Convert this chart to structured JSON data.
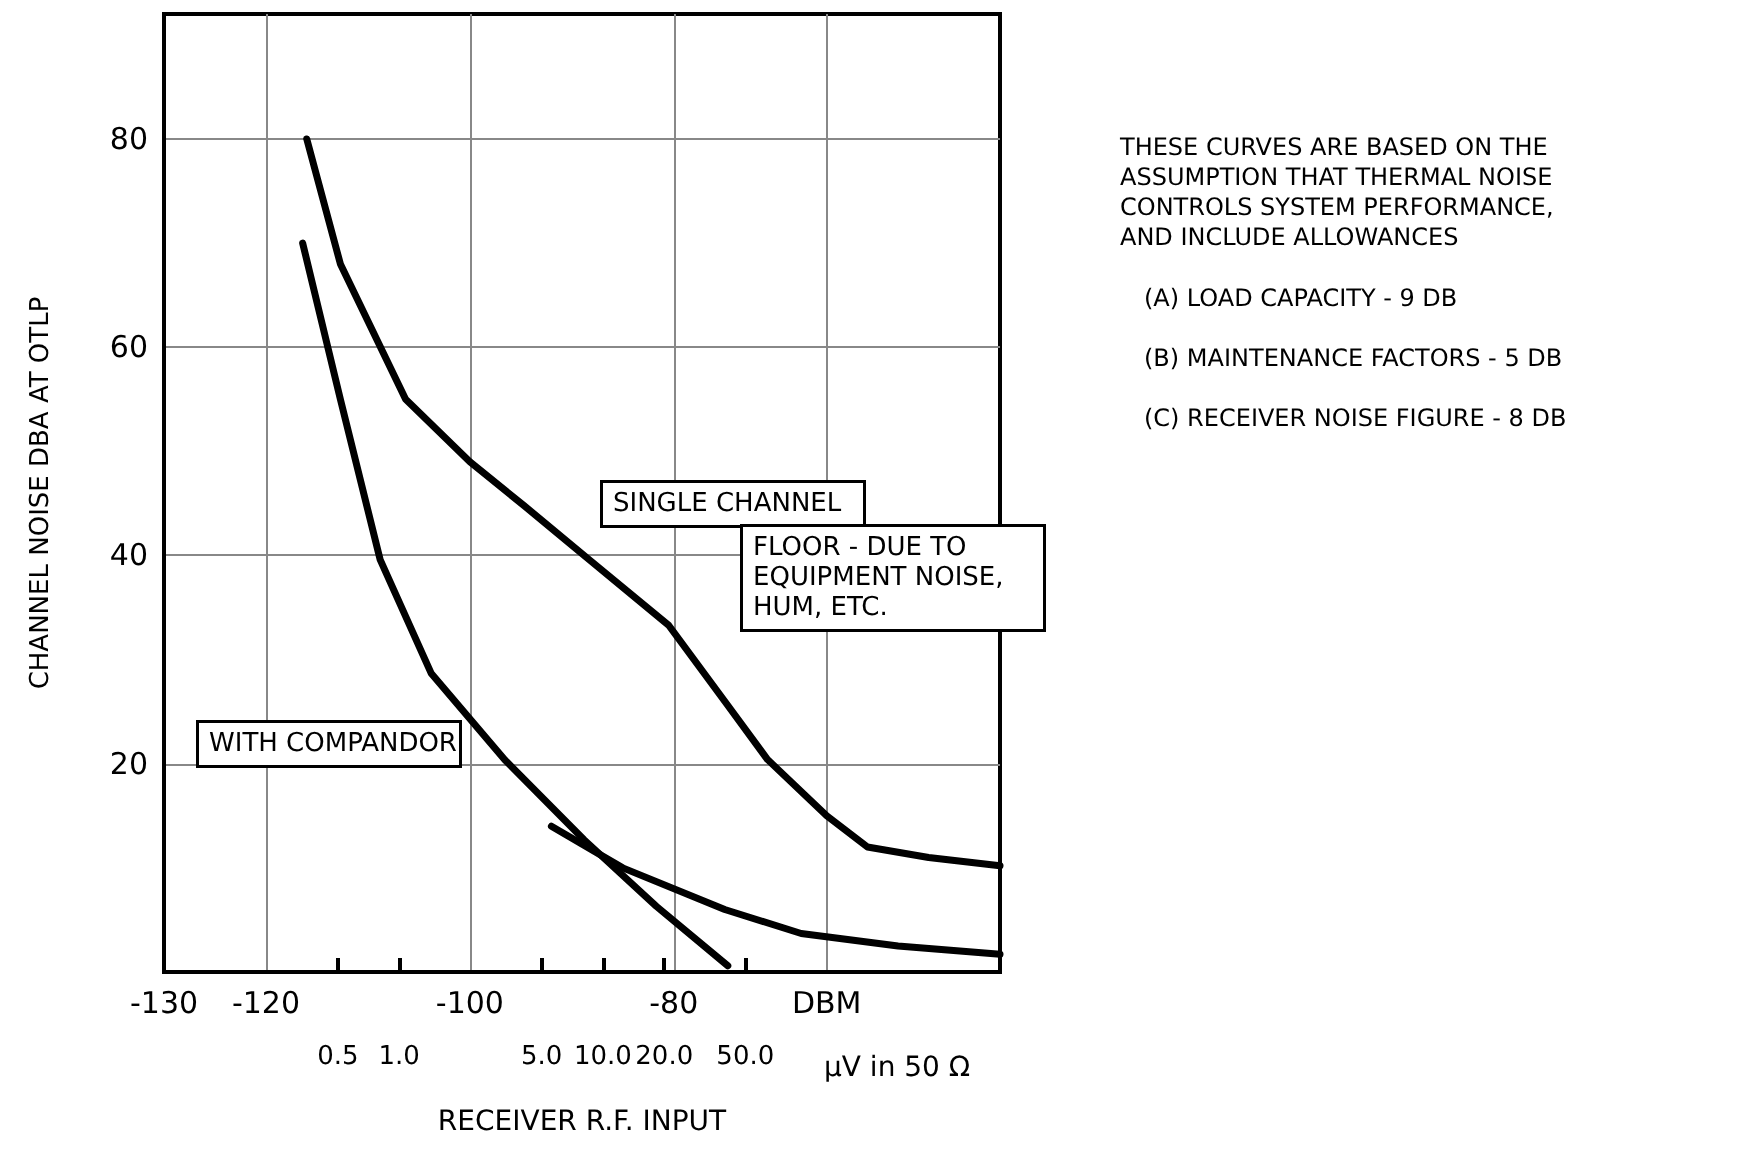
{
  "chart_data": {
    "type": "line",
    "xlabel": "RECEIVER R.F. INPUT",
    "ylabel": "CHANNEL NOISE DBA AT OTLP",
    "x2label": "µV in 50 Ω",
    "xlim": [
      -130,
      -48
    ],
    "xticks": [
      -130,
      -120,
      -100,
      -80,
      {
        "value": -65,
        "label": "DBM"
      }
    ],
    "x2lim": [
      0.07,
      890
    ],
    "x2ticks": [
      {
        "value": 0.5,
        "label": "0.5"
      },
      {
        "value": 1,
        "label": "1.0"
      },
      {
        "value": 5,
        "label": "5.0"
      },
      {
        "value": 10,
        "label": "10.0"
      },
      {
        "value": 20,
        "label": "20.0"
      },
      {
        "value": 50,
        "label": "50.0"
      }
    ],
    "ylim": [
      0,
      92
    ],
    "yticks": [
      20,
      40,
      60,
      80
    ],
    "log": "x2",
    "grid": true,
    "legend": false,
    "marker": "none",
    "line_style": "solid",
    "series": [
      {
        "name": "SINGLE CHANNEL",
        "color": "#000000",
        "x": [
          -116,
          -112.7,
          -106.3,
          -100,
          -94.7,
          -88.3,
          -80.5,
          -75,
          -70.8,
          -65,
          -61,
          -55,
          -48
        ],
        "values": [
          80,
          68,
          55,
          49,
          44.8,
          39.6,
          33.3,
          26,
          20.4,
          15,
          12,
          11,
          10.2
        ]
      },
      {
        "name": "WITH COMPANDOR",
        "color": "#000000",
        "x": [
          -116.4,
          -112.7,
          -108.8,
          -103.8,
          -96.6,
          -88.8,
          -81.7,
          -74.7
        ],
        "values": [
          70,
          55,
          39.6,
          28.7,
          20.4,
          12.7,
          6.3,
          0.6
        ]
      },
      {
        "color": "#000000",
        "x": [
          -92,
          -85,
          -75,
          -67.5,
          -58,
          -48
        ],
        "values": [
          14,
          10,
          6,
          3.7,
          2.5,
          1.7
        ]
      }
    ],
    "annotations": [
      "FLOOR - DUE TO EQUIPMENT NOISE, HUM, ETC.",
      "THESE CURVES ARE BASED ON THE ASSUMPTION THAT THERMAL NOISE CONTROLS SYSTEM PERFORMANCE, AND INCLUDE ALLOWANCES",
      "(A) LOAD CAPACITY - 9 DB",
      "(B) MAINTENANCE FACTORS - 5 DB",
      "(C) RECEIVER NOISE FIGURE - 8 DB"
    ]
  }
}
